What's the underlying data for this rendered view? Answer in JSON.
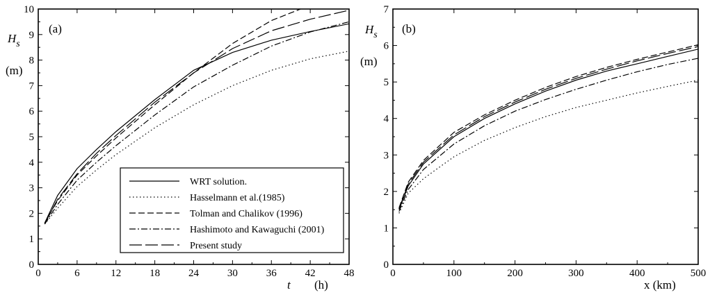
{
  "chart_data": [
    {
      "type": "line",
      "panel_label": "(a)",
      "ylabel": "H",
      "ylabel_sub": "s",
      "yunit": "(m)",
      "xlabel": "t",
      "xunit": "(h)",
      "xlim": [
        0,
        48
      ],
      "ylim": [
        0,
        10
      ],
      "xticks": [
        0,
        6,
        12,
        18,
        24,
        30,
        36,
        42,
        48
      ],
      "yticks": [
        0,
        1,
        2,
        3,
        4,
        5,
        6,
        7,
        8,
        9,
        10
      ],
      "grid": false,
      "legend_position": "bottom-right",
      "x": [
        1,
        3,
        6,
        9,
        12,
        18,
        24,
        30,
        36,
        42,
        48
      ],
      "series": [
        {
          "name": "WRT solution.",
          "style": "solid",
          "values": [
            1.62,
            2.7,
            3.75,
            4.5,
            5.2,
            6.45,
            7.6,
            8.3,
            8.78,
            9.12,
            9.42
          ]
        },
        {
          "name": "Hasselmann et al.(1985)",
          "style": "dotted",
          "values": [
            1.58,
            2.2,
            3.05,
            3.7,
            4.3,
            5.35,
            6.25,
            7.0,
            7.6,
            8.05,
            8.35
          ]
        },
        {
          "name": "Tolman and Chalikov (1996)",
          "style": "dashed",
          "values": [
            1.62,
            2.5,
            3.5,
            4.25,
            4.95,
            6.25,
            7.5,
            8.65,
            9.55,
            10.15,
            10.5
          ]
        },
        {
          "name": "Hashimoto and Kawaguchi (2001)",
          "style": "dashdot",
          "values": [
            1.58,
            2.35,
            3.3,
            4.0,
            4.65,
            5.85,
            6.95,
            7.8,
            8.55,
            9.1,
            9.5
          ]
        },
        {
          "name": "Present study",
          "style": "longdash",
          "values": [
            1.6,
            2.55,
            3.55,
            4.35,
            5.05,
            6.35,
            7.5,
            8.45,
            9.15,
            9.6,
            9.95
          ]
        }
      ]
    },
    {
      "type": "line",
      "panel_label": "(b)",
      "ylabel": "H",
      "ylabel_sub": "s",
      "yunit": "(m)",
      "xlabel": "x (km)",
      "xlim": [
        0,
        500
      ],
      "ylim": [
        0,
        7
      ],
      "xticks": [
        0,
        100,
        200,
        300,
        400,
        500
      ],
      "yticks": [
        0,
        1,
        2,
        3,
        4,
        5,
        6,
        7
      ],
      "grid": false,
      "x": [
        10,
        25,
        50,
        100,
        150,
        200,
        250,
        300,
        350,
        400,
        450,
        500
      ],
      "series": [
        {
          "name": "WRT solution.",
          "style": "solid",
          "values": [
            1.5,
            2.15,
            2.75,
            3.5,
            4.0,
            4.4,
            4.75,
            5.05,
            5.3,
            5.5,
            5.7,
            5.9
          ]
        },
        {
          "name": "Hasselmann et al.(1985)",
          "style": "dotted",
          "values": [
            1.4,
            1.95,
            2.35,
            2.95,
            3.4,
            3.75,
            4.05,
            4.3,
            4.5,
            4.7,
            4.88,
            5.05
          ]
        },
        {
          "name": "Tolman and Chalikov (1996)",
          "style": "dashed",
          "values": [
            1.55,
            2.25,
            2.85,
            3.62,
            4.1,
            4.5,
            4.85,
            5.15,
            5.4,
            5.62,
            5.82,
            6.02
          ]
        },
        {
          "name": "Hashimoto and Kawaguchi (2001)",
          "style": "dashdot",
          "values": [
            1.45,
            2.05,
            2.6,
            3.3,
            3.8,
            4.2,
            4.52,
            4.8,
            5.05,
            5.28,
            5.48,
            5.65
          ]
        },
        {
          "name": "Present study",
          "style": "longdash",
          "values": [
            1.52,
            2.2,
            2.8,
            3.55,
            4.05,
            4.45,
            4.8,
            5.1,
            5.35,
            5.58,
            5.78,
            5.97
          ]
        }
      ]
    }
  ]
}
